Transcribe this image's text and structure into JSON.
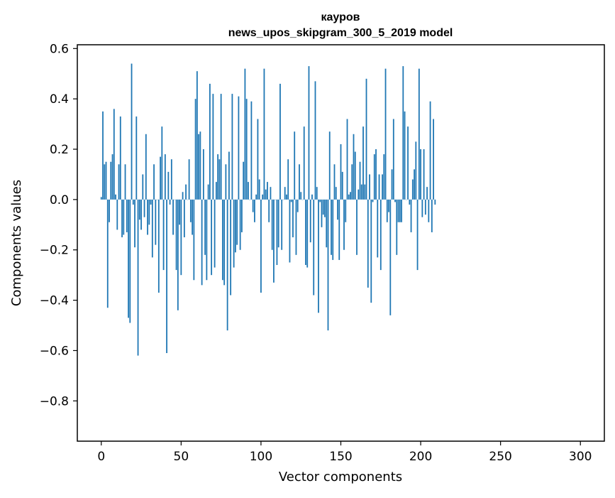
{
  "chart_data": {
    "type": "bar",
    "title": "кауров",
    "subtitle": "news_upos_skipgram_300_5_2019 model",
    "xlabel": "Vector components",
    "ylabel": "Components values",
    "xlim": [
      -15,
      315
    ],
    "ylim": [
      -0.96,
      0.615
    ],
    "bar_color": "#1f77b4",
    "grid": false,
    "x_ticks": [
      0,
      50,
      100,
      150,
      200,
      250,
      300
    ],
    "x_tick_labels": [
      "0",
      "50",
      "100",
      "150",
      "200",
      "250",
      "300"
    ],
    "y_ticks": [
      0.6,
      0.4,
      0.2,
      0.0,
      -0.2,
      -0.4,
      -0.6,
      -0.8
    ],
    "y_tick_labels": [
      "0.6",
      "0.4",
      "0.2",
      "0.0",
      "−0.2",
      "−0.4",
      "−0.6",
      "−0.8"
    ],
    "values": [
      0.01,
      0.35,
      0.14,
      0.15,
      -0.43,
      -0.09,
      0.15,
      0.18,
      0.36,
      0.02,
      -0.12,
      0.14,
      0.33,
      -0.15,
      -0.14,
      0.14,
      -0.13,
      -0.47,
      -0.49,
      0.54,
      -0.02,
      -0.19,
      0.33,
      -0.62,
      -0.08,
      -0.12,
      0.1,
      -0.07,
      0.26,
      -0.14,
      -0.1,
      -0.02,
      -0.23,
      0.14,
      -0.18,
      0.0,
      -0.37,
      0.17,
      0.29,
      -0.28,
      0.18,
      -0.61,
      0.11,
      -0.02,
      0.16,
      -0.14,
      0.0,
      -0.28,
      -0.44,
      -0.1,
      -0.3,
      0.03,
      -0.15,
      0.06,
      0.0,
      0.16,
      -0.09,
      -0.14,
      -0.32,
      0.4,
      0.51,
      0.26,
      0.27,
      -0.34,
      0.2,
      -0.22,
      -0.32,
      0.06,
      0.46,
      -0.3,
      0.42,
      -0.27,
      0.07,
      0.18,
      0.16,
      0.42,
      -0.32,
      -0.34,
      0.14,
      -0.52,
      0.19,
      -0.38,
      0.42,
      -0.27,
      -0.21,
      -0.18,
      0.41,
      -0.2,
      -0.13,
      0.15,
      0.52,
      0.4,
      0.07,
      0.0,
      0.39,
      -0.05,
      -0.09,
      0.02,
      0.32,
      0.08,
      -0.37,
      0.02,
      0.52,
      0.04,
      0.07,
      -0.09,
      0.05,
      -0.2,
      -0.33,
      0.0,
      -0.26,
      -0.19,
      0.46,
      -0.2,
      0.0,
      0.05,
      0.02,
      0.16,
      -0.25,
      -0.01,
      -0.15,
      0.27,
      -0.22,
      -0.05,
      0.14,
      0.03,
      0.0,
      0.29,
      -0.26,
      -0.27,
      0.53,
      -0.17,
      0.02,
      -0.38,
      0.47,
      0.05,
      -0.45,
      -0.01,
      -0.11,
      -0.06,
      -0.07,
      -0.19,
      -0.52,
      0.27,
      -0.22,
      -0.24,
      0.14,
      0.05,
      -0.08,
      -0.24,
      0.22,
      0.11,
      -0.2,
      -0.09,
      0.32,
      0.02,
      0.03,
      0.14,
      0.26,
      0.19,
      -0.22,
      0.04,
      0.15,
      0.06,
      0.29,
      0.06,
      0.48,
      -0.35,
      0.1,
      -0.41,
      -0.01,
      0.18,
      0.2,
      -0.23,
      0.1,
      -0.28,
      0.1,
      0.18,
      0.52,
      -0.09,
      -0.05,
      -0.46,
      0.12,
      0.32,
      -0.01,
      -0.22,
      -0.09,
      -0.09,
      -0.09,
      0.53,
      0.35,
      0.0,
      0.29,
      -0.02,
      -0.13,
      0.08,
      0.12,
      0.23,
      -0.28,
      0.52,
      0.2,
      -0.07,
      0.2,
      -0.06,
      0.05,
      -0.09,
      0.39,
      -0.13,
      0.32,
      -0.02
    ]
  }
}
